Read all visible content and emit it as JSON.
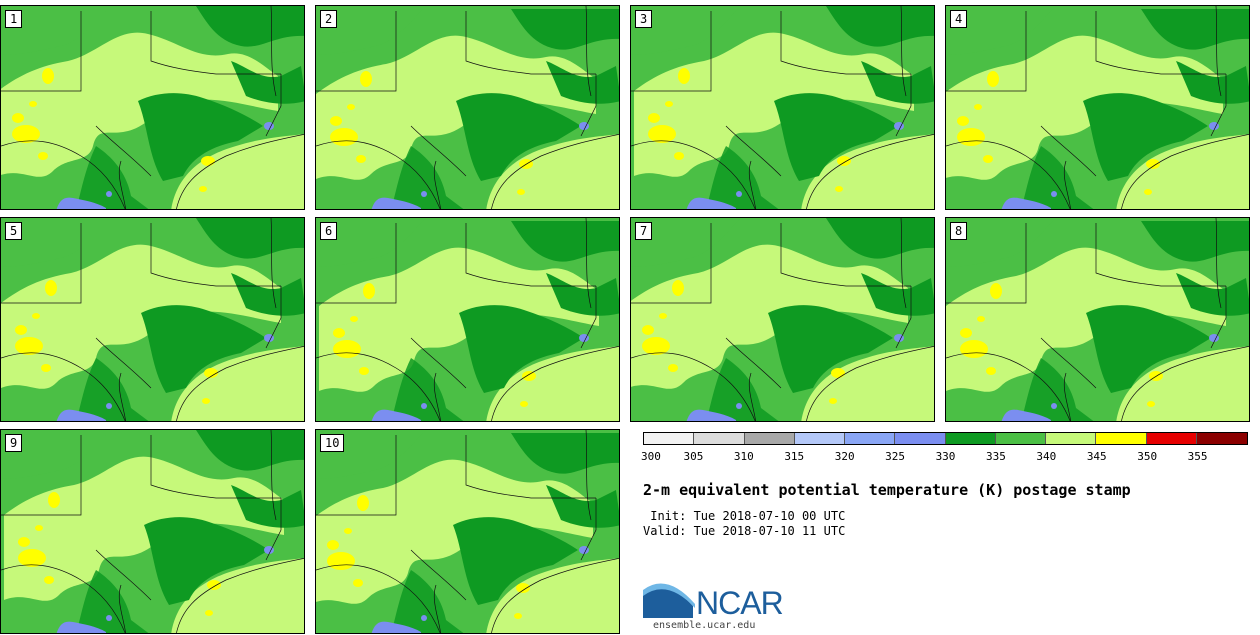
{
  "panels": [
    {
      "label": "1"
    },
    {
      "label": "2"
    },
    {
      "label": "3"
    },
    {
      "label": "4"
    },
    {
      "label": "5"
    },
    {
      "label": "6"
    },
    {
      "label": "7"
    },
    {
      "label": "8"
    },
    {
      "label": "9"
    },
    {
      "label": "10"
    }
  ],
  "colorbar": {
    "ticks": [
      "300",
      "305",
      "310",
      "315",
      "320",
      "325",
      "330",
      "335",
      "340",
      "345",
      "350",
      "355"
    ],
    "colors": [
      "#f2f2f2",
      "#dcdcdc",
      "#a8a8a8",
      "#b4c8f8",
      "#8aa6f5",
      "#7b8ef0",
      "#0e9a22",
      "#4bbf45",
      "#c6f97a",
      "#ffff00",
      "#e60000",
      "#8b0000"
    ]
  },
  "title": "2-m equivalent potential temperature (K) postage stamp",
  "init": " Init: Tue 2018-07-10 00 UTC",
  "valid": "Valid: Tue 2018-07-10 11 UTC",
  "logo": {
    "text": "NCAR",
    "url": "ensemble.ucar.edu"
  }
}
